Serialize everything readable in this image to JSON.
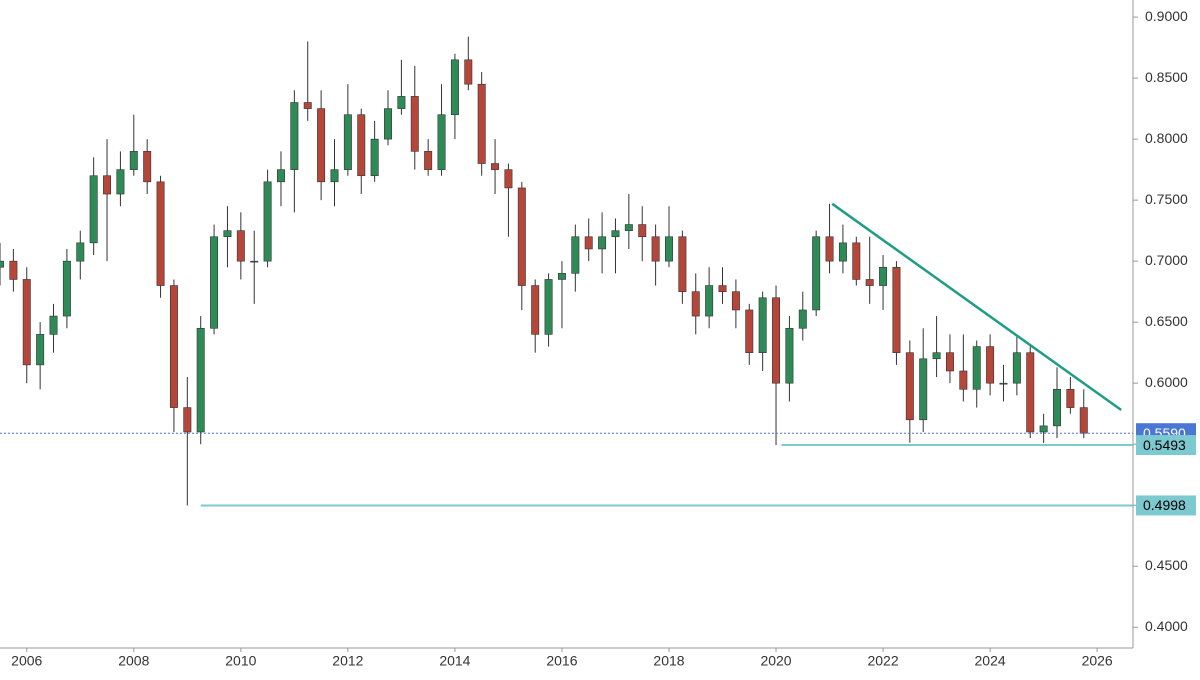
{
  "chart_data": {
    "type": "candlestick",
    "x": [
      2005.5,
      2005.75,
      2006,
      2006.25,
      2006.5,
      2006.75,
      2007,
      2007.25,
      2007.5,
      2007.75,
      2008,
      2008.25,
      2008.5,
      2008.75,
      2009,
      2009.25,
      2009.5,
      2009.75,
      2010,
      2010.25,
      2010.5,
      2010.75,
      2011,
      2011.25,
      2011.5,
      2011.75,
      2012,
      2012.25,
      2012.5,
      2012.75,
      2013,
      2013.25,
      2013.5,
      2013.75,
      2014,
      2014.25,
      2014.5,
      2014.75,
      2015,
      2015.25,
      2015.5,
      2015.75,
      2016,
      2016.25,
      2016.5,
      2016.75,
      2017,
      2017.25,
      2017.5,
      2017.75,
      2018,
      2018.25,
      2018.5,
      2018.75,
      2019,
      2019.25,
      2019.5,
      2019.75,
      2020,
      2020.25,
      2020.5,
      2020.75,
      2021,
      2021.25,
      2021.5,
      2021.75,
      2022,
      2022.25,
      2022.5,
      2022.75,
      2023,
      2023.25,
      2023.5,
      2023.75,
      2024,
      2024.25,
      2024.5,
      2024.75,
      2025,
      2025.25,
      2025.5,
      2025.75
    ],
    "open": [
      0.695,
      0.7,
      0.685,
      0.615,
      0.64,
      0.655,
      0.7,
      0.715,
      0.77,
      0.755,
      0.775,
      0.79,
      0.765,
      0.68,
      0.58,
      0.56,
      0.645,
      0.72,
      0.725,
      0.7,
      0.7,
      0.765,
      0.775,
      0.83,
      0.825,
      0.765,
      0.775,
      0.82,
      0.77,
      0.8,
      0.825,
      0.835,
      0.79,
      0.775,
      0.82,
      0.865,
      0.845,
      0.78,
      0.775,
      0.76,
      0.68,
      0.64,
      0.685,
      0.69,
      0.72,
      0.71,
      0.72,
      0.725,
      0.73,
      0.72,
      0.7,
      0.72,
      0.675,
      0.655,
      0.68,
      0.675,
      0.66,
      0.625,
      0.67,
      0.6,
      0.645,
      0.66,
      0.72,
      0.7,
      0.715,
      0.685,
      0.68,
      0.695,
      0.625,
      0.57,
      0.62,
      0.625,
      0.61,
      0.595,
      0.63,
      0.6,
      0.6,
      0.625,
      0.56,
      0.565,
      0.595,
      0.58
    ],
    "high": [
      0.715,
      0.71,
      0.695,
      0.65,
      0.665,
      0.71,
      0.725,
      0.785,
      0.8,
      0.79,
      0.82,
      0.8,
      0.77,
      0.685,
      0.605,
      0.655,
      0.73,
      0.745,
      0.74,
      0.725,
      0.775,
      0.79,
      0.84,
      0.88,
      0.84,
      0.8,
      0.845,
      0.825,
      0.815,
      0.84,
      0.865,
      0.86,
      0.8,
      0.845,
      0.87,
      0.884,
      0.855,
      0.8,
      0.78,
      0.765,
      0.685,
      0.69,
      0.7,
      0.73,
      0.735,
      0.74,
      0.735,
      0.755,
      0.745,
      0.73,
      0.745,
      0.725,
      0.69,
      0.695,
      0.695,
      0.685,
      0.665,
      0.675,
      0.68,
      0.655,
      0.675,
      0.725,
      0.747,
      0.73,
      0.72,
      0.72,
      0.705,
      0.7,
      0.635,
      0.645,
      0.655,
      0.64,
      0.64,
      0.635,
      0.64,
      0.615,
      0.638,
      0.63,
      0.575,
      0.613,
      0.605,
      0.595
    ],
    "low": [
      0.68,
      0.675,
      0.6,
      0.595,
      0.625,
      0.645,
      0.685,
      0.705,
      0.7,
      0.745,
      0.77,
      0.755,
      0.67,
      0.56,
      0.4998,
      0.55,
      0.64,
      0.695,
      0.685,
      0.665,
      0.695,
      0.745,
      0.74,
      0.815,
      0.75,
      0.745,
      0.77,
      0.755,
      0.765,
      0.795,
      0.82,
      0.775,
      0.77,
      0.77,
      0.8,
      0.84,
      0.77,
      0.755,
      0.72,
      0.66,
      0.625,
      0.63,
      0.645,
      0.675,
      0.7,
      0.69,
      0.69,
      0.71,
      0.7,
      0.68,
      0.695,
      0.665,
      0.64,
      0.645,
      0.665,
      0.645,
      0.615,
      0.61,
      0.5493,
      0.585,
      0.635,
      0.655,
      0.69,
      0.69,
      0.68,
      0.665,
      0.66,
      0.615,
      0.5512,
      0.56,
      0.605,
      0.6,
      0.585,
      0.58,
      0.59,
      0.585,
      0.59,
      0.555,
      0.551,
      0.555,
      0.575,
      0.555
    ],
    "close": [
      0.7,
      0.685,
      0.615,
      0.64,
      0.655,
      0.7,
      0.715,
      0.77,
      0.755,
      0.775,
      0.79,
      0.765,
      0.68,
      0.58,
      0.56,
      0.645,
      0.72,
      0.725,
      0.7,
      0.7,
      0.765,
      0.775,
      0.83,
      0.825,
      0.765,
      0.775,
      0.82,
      0.77,
      0.8,
      0.825,
      0.835,
      0.79,
      0.775,
      0.82,
      0.865,
      0.845,
      0.78,
      0.775,
      0.76,
      0.68,
      0.64,
      0.685,
      0.69,
      0.72,
      0.71,
      0.72,
      0.725,
      0.73,
      0.72,
      0.7,
      0.72,
      0.675,
      0.655,
      0.68,
      0.675,
      0.66,
      0.625,
      0.67,
      0.6,
      0.645,
      0.66,
      0.72,
      0.7,
      0.715,
      0.685,
      0.68,
      0.695,
      0.625,
      0.57,
      0.62,
      0.625,
      0.61,
      0.595,
      0.63,
      0.6,
      0.6,
      0.625,
      0.56,
      0.565,
      0.595,
      0.58,
      0.559
    ],
    "up_color": "#2e8b57",
    "down_color": "#b5463a",
    "xlim": [
      2005.5,
      2026.67
    ],
    "ylim": [
      0.383,
      0.914
    ],
    "xticks": [
      2006,
      2008,
      2010,
      2012,
      2014,
      2016,
      2018,
      2020,
      2022,
      2024,
      2026
    ],
    "yticks": [
      {
        "value": 0.4,
        "label": "0.4000"
      },
      {
        "value": 0.45,
        "label": "0.4500"
      },
      {
        "value": 0.5,
        "label": "0.5000"
      },
      {
        "value": 0.55,
        "label": "0.5500"
      },
      {
        "value": 0.6,
        "label": "0.6000"
      },
      {
        "value": 0.65,
        "label": "0.6500"
      },
      {
        "value": 0.7,
        "label": "0.7000"
      },
      {
        "value": 0.75,
        "label": "0.7500"
      },
      {
        "value": 0.8,
        "label": "0.8000"
      },
      {
        "value": 0.85,
        "label": "0.8500"
      },
      {
        "value": 0.9,
        "label": "0.9000"
      }
    ],
    "price_lines": [
      {
        "value": 0.559,
        "label": "0.5590",
        "color": "#4a77d4",
        "label_color": "#ffffff",
        "dashed": true
      },
      {
        "value": 0.5493,
        "label": "0.5493",
        "color": "#7cc9d0",
        "label_color": "#000000",
        "x_start": 2020.1
      },
      {
        "value": 0.4998,
        "label": "0.4998",
        "color": "#7cc9d0",
        "label_color": "#000000",
        "x_start": 2009.25
      }
    ],
    "trendline": {
      "x": [
        2021.05,
        2026.45
      ],
      "y": [
        0.747,
        0.578
      ],
      "color": "#1f9e85"
    }
  }
}
